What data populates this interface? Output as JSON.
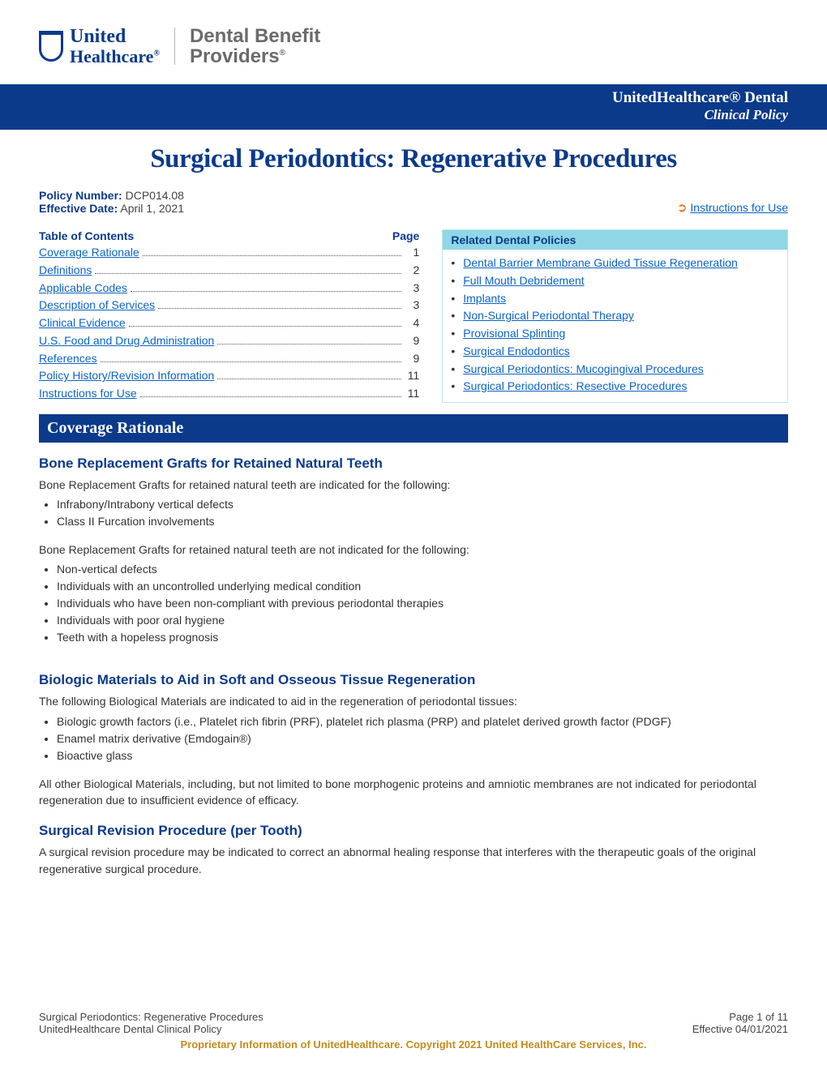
{
  "header": {
    "logo_primary_line1": "United",
    "logo_primary_line2": "Healthcare",
    "logo_primary_reg": "®",
    "logo_secondary_line1": "Dental Benefit",
    "logo_secondary_line2": "Providers",
    "logo_secondary_reg": "®",
    "logo_primary_color": "#0b3a8a",
    "logo_secondary_color": "#6b6b6b",
    "bar_line1": "UnitedHealthcare® Dental",
    "bar_line2": "Clinical Policy",
    "bar_bg": "#0b3a8a",
    "bar_text_color": "#ffffff"
  },
  "title": "Surgical Periodontics: Regenerative Procedures",
  "title_color": "#0b3a8a",
  "meta": {
    "policy_label": "Policy Number:",
    "policy_value": " DCP014.08",
    "eff_label": "Effective Date:",
    "eff_value": " April 1, 2021",
    "instructions_symbol": "➲",
    "instructions_text": "Instructions for Use",
    "link_color": "#0b63c4",
    "arrow_color": "#e86f1a"
  },
  "toc": {
    "heading_left": "Table of Contents",
    "heading_right": "Page",
    "items": [
      {
        "label": "Coverage Rationale",
        "page": "1"
      },
      {
        "label": "Definitions",
        "page": "2"
      },
      {
        "label": "Applicable Codes",
        "page": "3"
      },
      {
        "label": "Description of Services",
        "page": "3"
      },
      {
        "label": "Clinical Evidence",
        "page": "4"
      },
      {
        "label": "U.S. Food and Drug Administration",
        "page": "9"
      },
      {
        "label": "References",
        "page": "9"
      },
      {
        "label": "Policy History/Revision Information",
        "page": "11"
      },
      {
        "label": "Instructions for Use",
        "page": "11"
      }
    ]
  },
  "related": {
    "heading": "Related Dental Policies",
    "heading_bg": "#8fd7e6",
    "border_color": "#bfe2ee",
    "items": [
      "Dental Barrier Membrane Guided Tissue Regeneration",
      "Full Mouth Debridement",
      "Implants",
      "Non-Surgical Periodontal Therapy",
      "Provisional Splinting",
      "Surgical Endodontics",
      "Surgical Periodontics: Mucogingival Procedures",
      "Surgical Periodontics: Resective Procedures"
    ]
  },
  "section_title": "Coverage Rationale",
  "subsections": [
    {
      "heading": "Bone Replacement Grafts for Retained Natural Teeth",
      "intro1": "Bone Replacement Grafts for retained natural teeth are indicated for the following:",
      "list1": [
        "Infrabony/Intrabony vertical defects",
        "Class II Furcation involvements"
      ],
      "intro2": "Bone Replacement Grafts for retained natural teeth are not indicated for the following:",
      "list2": [
        "Non-vertical defects",
        "Individuals with an uncontrolled underlying medical condition",
        "Individuals who have been non-compliant with previous periodontal therapies",
        "Individuals with poor oral hygiene",
        "Teeth with a hopeless prognosis"
      ]
    },
    {
      "heading": "Biologic Materials to Aid in Soft and Osseous Tissue Regeneration",
      "intro1": "The following Biological Materials are indicated to aid in the regeneration of periodontal tissues:",
      "list1": [
        "Biologic growth factors (i.e., Platelet rich fibrin (PRF), platelet rich plasma (PRP) and platelet derived growth factor (PDGF)",
        "Enamel matrix derivative (Emdogain®)",
        "Bioactive glass"
      ],
      "intro2": "All other Biological Materials, including, but not limited to bone morphogenic proteins and amniotic membranes are not indicated for periodontal regeneration due to insufficient evidence of efficacy.",
      "list2": []
    },
    {
      "heading": "Surgical Revision Procedure (per Tooth)",
      "intro1": "A surgical revision procedure may be indicated to correct an abnormal healing response that interferes with the therapeutic goals of the original regenerative surgical procedure.",
      "list1": [],
      "intro2": "",
      "list2": []
    }
  ],
  "footer": {
    "left1": "Surgical Periodontics: Regenerative Procedures",
    "right1": "Page 1 of 11",
    "left2": "UnitedHealthcare Dental Clinical Policy",
    "right2": "Effective 04/01/2021",
    "copyright": "Proprietary Information of UnitedHealthcare. Copyright 2021 United HealthCare Services, Inc.",
    "copyright_color": "#c48b1c"
  },
  "style": {
    "body_font": "Arial",
    "heading_font": "Georgia",
    "link_color": "#0b63c4",
    "primary_color": "#0b3a8a",
    "text_color": "#333333",
    "body_fontsize": 14,
    "title_fontsize": 33,
    "section_bar_fontsize": 20,
    "subhead_fontsize": 17
  }
}
